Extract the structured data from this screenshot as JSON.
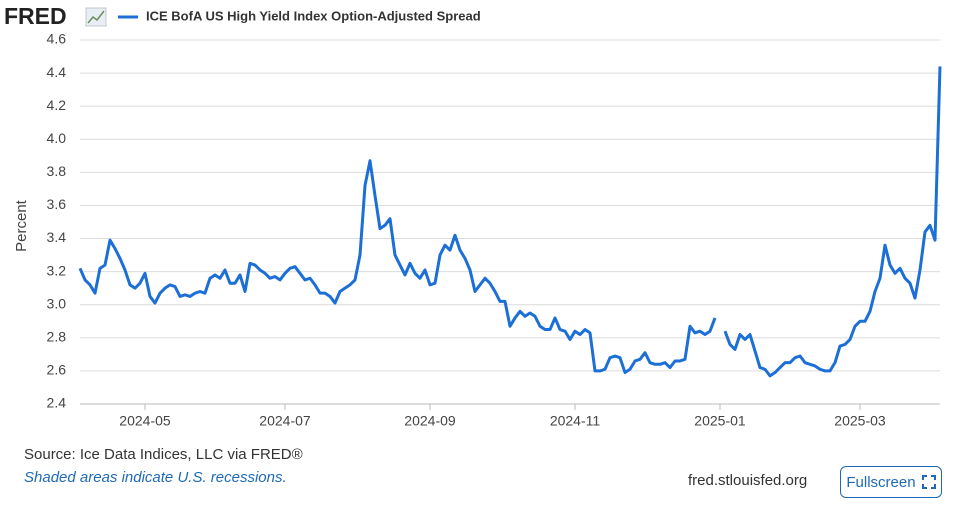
{
  "header": {
    "logo": "FRED"
  },
  "footer": {
    "source": "Source: Ice Data Indices, LLC via FRED®",
    "note": "Shaded areas indicate U.S. recessions.",
    "site": "fred.stlouisfed.org",
    "button": "Fullscreen"
  },
  "chart_data": {
    "type": "line",
    "y_label": "Percent",
    "categories": [
      null,
      null,
      null,
      null,
      null,
      null,
      null,
      null,
      null,
      null,
      null,
      null,
      null,
      "2024-05",
      null,
      null,
      null,
      null,
      null,
      null,
      null,
      null,
      null,
      null,
      null,
      null,
      null,
      null,
      null,
      null,
      null,
      null,
      null,
      null,
      null,
      null,
      null,
      null,
      null,
      null,
      null,
      "2024-07",
      null,
      null,
      null,
      null,
      null,
      null,
      null,
      null,
      null,
      null,
      null,
      null,
      null,
      null,
      null,
      null,
      null,
      null,
      null,
      null,
      null,
      null,
      null,
      null,
      null,
      null,
      null,
      null,
      "2024-09",
      null,
      null,
      null,
      null,
      null,
      null,
      null,
      null,
      null,
      null,
      null,
      null,
      null,
      null,
      null,
      null,
      null,
      null,
      null,
      null,
      null,
      null,
      null,
      null,
      null,
      null,
      null,
      null,
      "2024-11",
      null,
      null,
      null,
      null,
      null,
      null,
      null,
      null,
      null,
      null,
      null,
      null,
      null,
      null,
      null,
      null,
      null,
      null,
      null,
      null,
      null,
      null,
      null,
      null,
      null,
      null,
      null,
      null,
      "2025-01",
      null,
      null,
      null,
      null,
      null,
      null,
      null,
      null,
      null,
      null,
      null,
      null,
      null,
      null,
      null,
      null,
      null,
      null,
      null,
      null,
      null,
      null,
      null,
      null,
      null,
      null,
      null,
      "2025-03",
      null,
      null,
      null,
      null,
      null,
      null,
      null,
      null,
      null,
      null,
      null,
      null,
      null,
      null,
      null,
      null
    ],
    "series": [
      {
        "name": "ICE BofA US High Yield Index Option-Adjusted Spread",
        "color": "#1c6fd6",
        "values": [
          3.22,
          3.15,
          3.12,
          3.07,
          3.22,
          3.24,
          3.39,
          3.34,
          3.28,
          3.21,
          3.12,
          3.1,
          3.13,
          3.19,
          3.05,
          3.01,
          3.07,
          3.1,
          3.12,
          3.11,
          3.05,
          3.06,
          3.05,
          3.07,
          3.08,
          3.07,
          3.16,
          3.18,
          3.16,
          3.21,
          3.13,
          3.13,
          3.18,
          3.08,
          3.25,
          3.24,
          3.21,
          3.19,
          3.16,
          3.17,
          3.15,
          3.19,
          3.22,
          3.23,
          3.19,
          3.15,
          3.16,
          3.12,
          3.07,
          3.07,
          3.05,
          3.01,
          3.08,
          3.1,
          3.12,
          3.15,
          3.3,
          3.72,
          3.87,
          3.66,
          3.46,
          3.48,
          3.52,
          3.3,
          3.24,
          3.18,
          3.25,
          3.19,
          3.16,
          3.21,
          3.12,
          3.13,
          3.3,
          3.36,
          3.33,
          3.42,
          3.33,
          3.28,
          3.21,
          3.08,
          3.12,
          3.16,
          3.13,
          3.08,
          3.02,
          3.02,
          2.87,
          2.92,
          2.96,
          2.93,
          2.95,
          2.93,
          2.87,
          2.85,
          2.85,
          2.92,
          2.85,
          2.84,
          2.79,
          2.84,
          2.82,
          2.85,
          2.83,
          2.6,
          2.6,
          2.61,
          2.68,
          2.69,
          2.68,
          2.59,
          2.61,
          2.66,
          2.67,
          2.71,
          2.65,
          2.64,
          2.64,
          2.65,
          2.62,
          2.66,
          2.66,
          2.67,
          2.87,
          2.83,
          2.84,
          2.82,
          2.84,
          2.92,
          null,
          2.84,
          2.76,
          2.73,
          2.82,
          2.79,
          2.82,
          2.72,
          2.62,
          2.61,
          2.57,
          2.59,
          2.62,
          2.65,
          2.65,
          2.68,
          2.69,
          2.65,
          2.64,
          2.63,
          2.61,
          2.6,
          2.6,
          2.65,
          2.75,
          2.76,
          2.79,
          2.87,
          2.9,
          2.9,
          2.96,
          3.08,
          3.16,
          3.36,
          3.24,
          3.19,
          3.22,
          3.16,
          3.13,
          3.04,
          3.21,
          3.44,
          3.48,
          3.39,
          4.44
        ]
      }
    ],
    "ylim": [
      2.4,
      4.6
    ],
    "yticks": [
      2.4,
      2.6,
      2.8,
      {
        "value": 3,
        "label": "3.0"
      },
      3.2,
      3.4,
      3.6,
      3.8,
      {
        "value": 4,
        "label": "4.0"
      },
      4.2,
      4.4,
      4.6
    ],
    "grid": true
  }
}
